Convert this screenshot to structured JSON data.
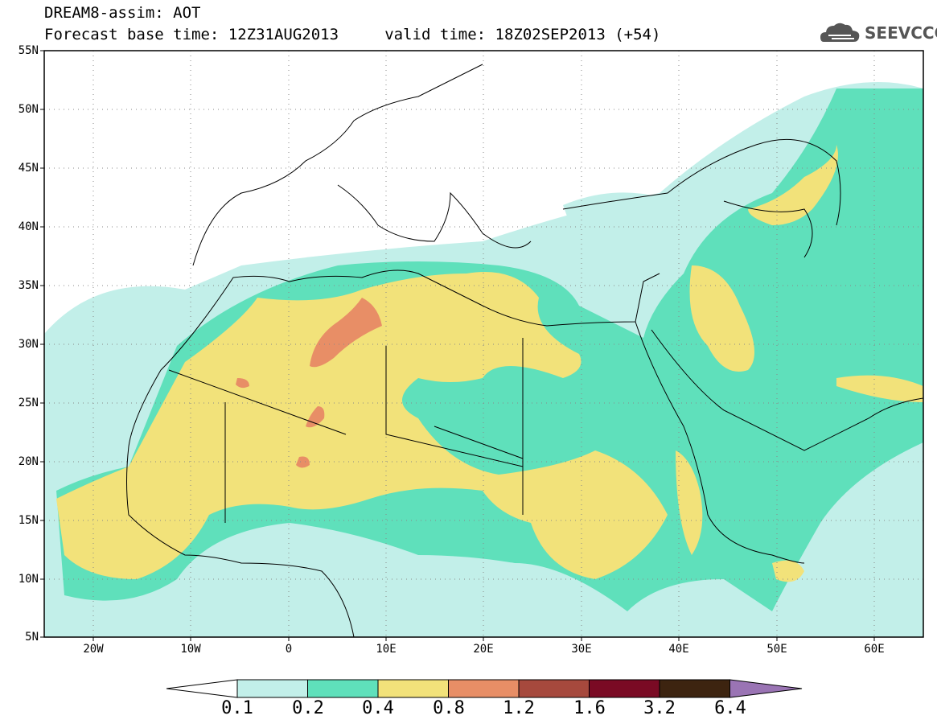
{
  "title_line1": "DREAM8-assim: AOT",
  "title_line2": "Forecast base time: 12Z31AUG2013     valid time: 18Z02SEP2013 (+54)",
  "logo_text": "SEEVCCC",
  "logo_icon": "cloud-icon",
  "map": {
    "lon_range": [
      -25,
      65
    ],
    "lat_range": [
      5,
      55
    ],
    "y_ticks": [
      "55N",
      "50N",
      "45N",
      "40N",
      "35N",
      "30N",
      "25N",
      "20N",
      "15N",
      "10N",
      "5N"
    ],
    "x_ticks": [
      "20W",
      "10W",
      "0",
      "10E",
      "20E",
      "30E",
      "40E",
      "50E",
      "60E"
    ],
    "grid": true
  },
  "colorbar": {
    "colors": [
      "#ffffff",
      "#c2efe9",
      "#5fe0bb",
      "#f2e27a",
      "#e88e66",
      "#a6493d",
      "#7a0a24",
      "#3d2410",
      "#9a74b4"
    ],
    "labels": [
      "0.1",
      "0.2",
      "0.4",
      "0.8",
      "1.2",
      "1.6",
      "3.2",
      "6.4"
    ]
  }
}
